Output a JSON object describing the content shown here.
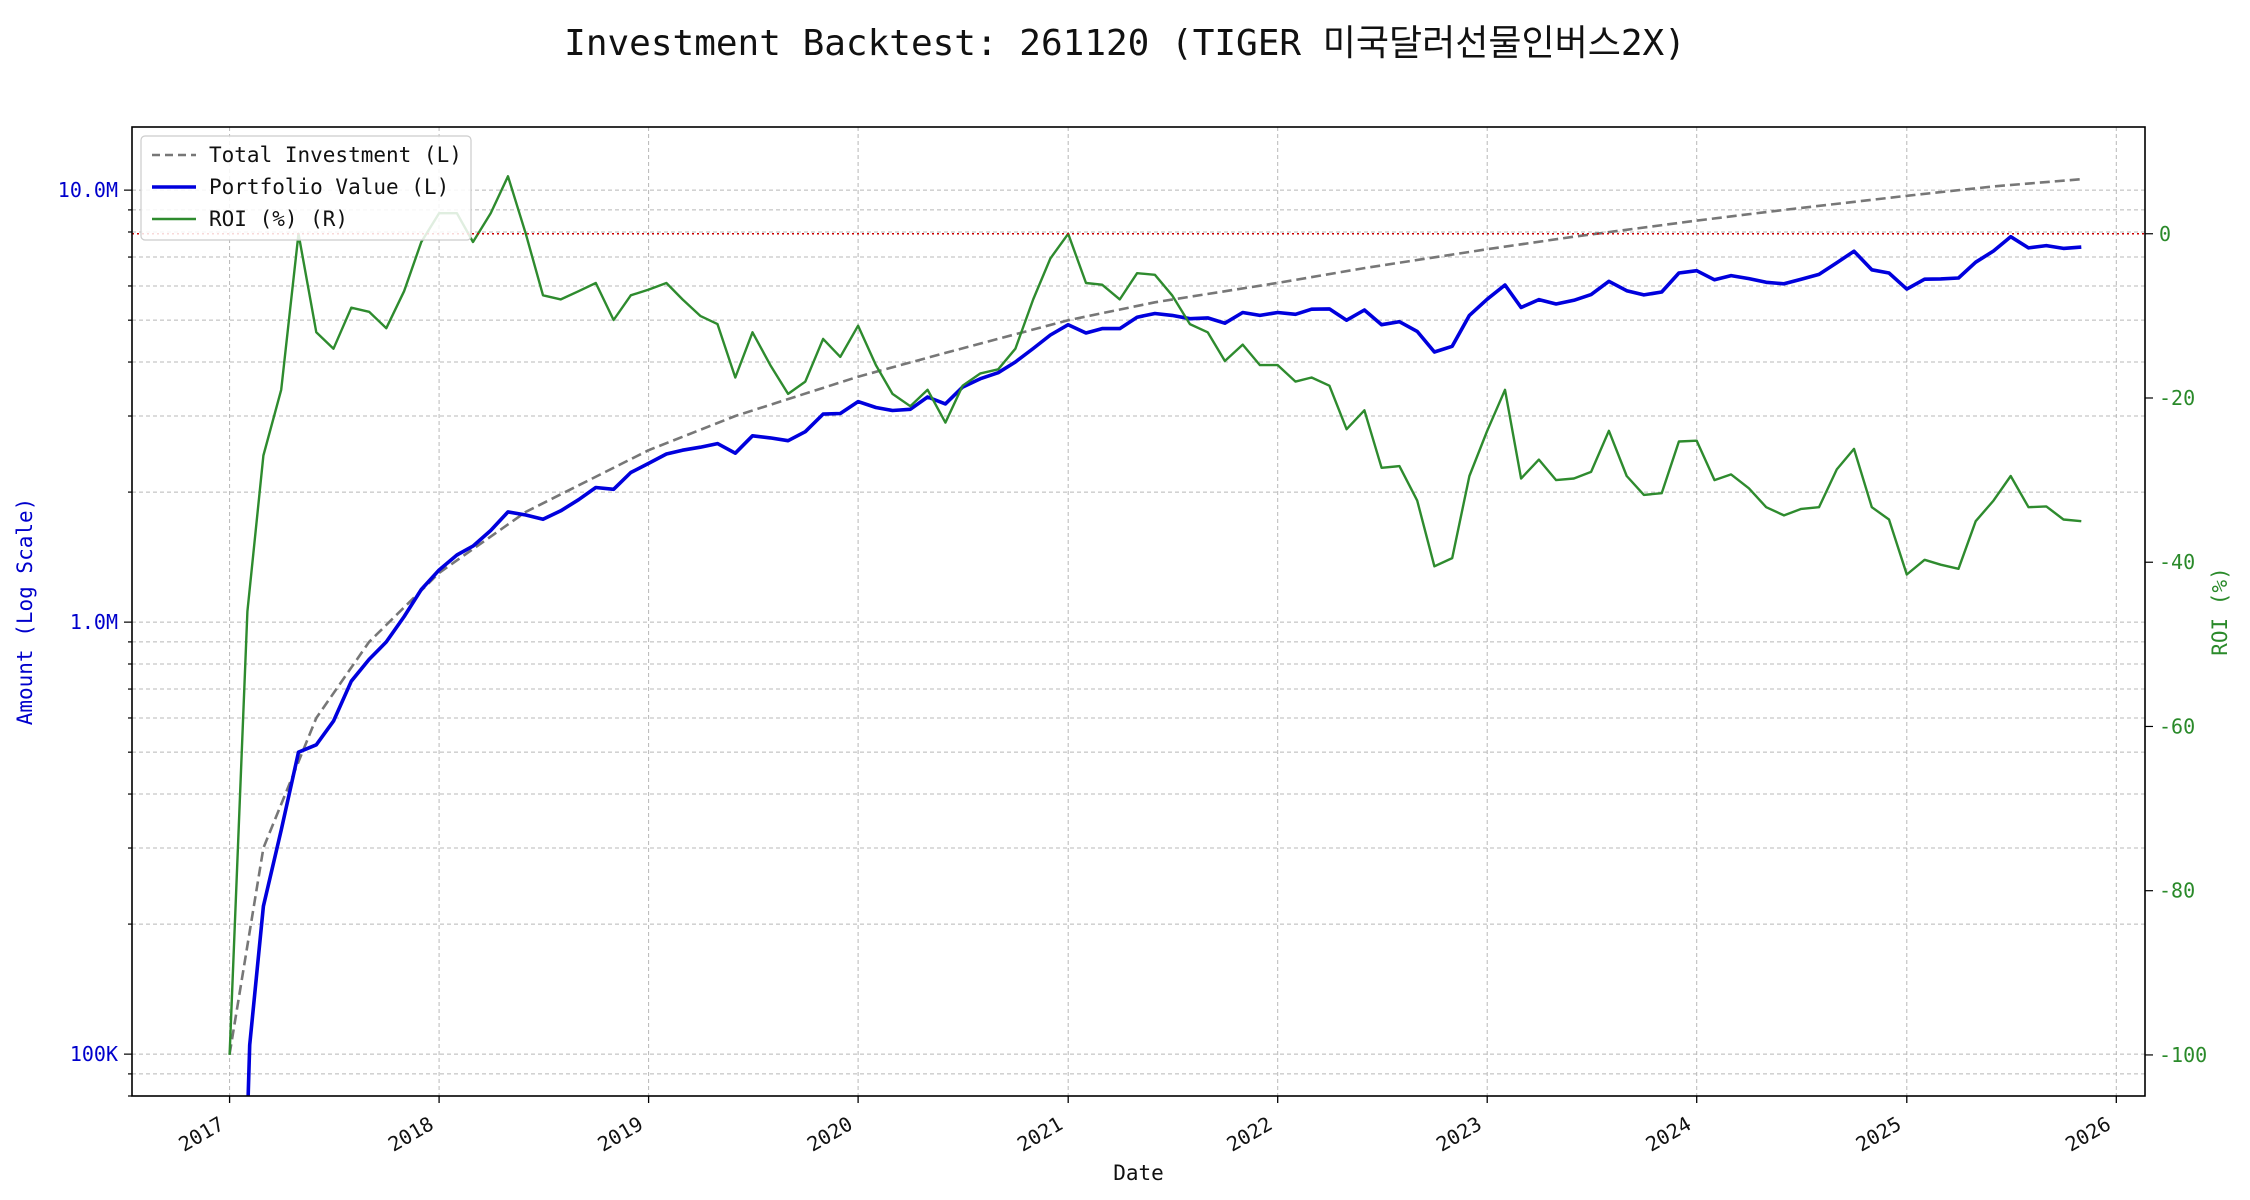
{
  "chart_data": {
    "type": "line",
    "title": "Investment Backtest: 261120 (TIGER 미국달러선물인버스2X)",
    "xlabel": "Date",
    "ylabel_left": "Amount (Log Scale)",
    "ylabel_right": "ROI (%)",
    "left_scale": "log",
    "left_ylim": [
      80000,
      14000000
    ],
    "right_ylim": [
      -105,
      13
    ],
    "xlim": [
      "2016-07-15",
      "2026-02-20"
    ],
    "x_ticks": [
      "2017",
      "2018",
      "2019",
      "2020",
      "2021",
      "2022",
      "2023",
      "2024",
      "2025",
      "2026"
    ],
    "left_ticks": [
      {
        "value": 100000,
        "label": "100K"
      },
      {
        "value": 1000000,
        "label": "1.0M"
      },
      {
        "value": 10000000,
        "label": "10.0M"
      }
    ],
    "right_ticks": [
      0,
      -20,
      -40,
      -60,
      -80,
      -100
    ],
    "reference_line": {
      "axis": "right",
      "value": 0,
      "color": "#cc0000",
      "style": "dotted"
    },
    "grid": true,
    "legend_position": "top-left",
    "legend": [
      "Total Investment (L)",
      "Portfolio Value (L)",
      "ROI (%) (R)"
    ],
    "series": [
      {
        "name": "Total Investment (L)",
        "axis": "left",
        "color": "#777777",
        "style": "dashed",
        "points": [
          [
            "2017-01-01",
            100000
          ],
          [
            "2017-03-01",
            300000
          ],
          [
            "2017-06-01",
            600000
          ],
          [
            "2017-09-01",
            900000
          ],
          [
            "2018-01-01",
            1300000
          ],
          [
            "2018-06-01",
            1800000
          ],
          [
            "2019-01-01",
            2500000
          ],
          [
            "2019-06-01",
            3000000
          ],
          [
            "2020-01-01",
            3700000
          ],
          [
            "2020-06-01",
            4200000
          ],
          [
            "2021-01-01",
            5000000
          ],
          [
            "2021-06-01",
            5500000
          ],
          [
            "2022-01-01",
            6100000
          ],
          [
            "2022-06-01",
            6600000
          ],
          [
            "2023-01-01",
            7300000
          ],
          [
            "2023-06-01",
            7800000
          ],
          [
            "2024-01-01",
            8500000
          ],
          [
            "2024-06-01",
            9000000
          ],
          [
            "2025-01-01",
            9700000
          ],
          [
            "2025-06-01",
            10200000
          ],
          [
            "2025-11-01",
            10600000
          ]
        ]
      },
      {
        "name": "Portfolio Value (L)",
        "axis": "left",
        "color": "#0000dd",
        "style": "solid",
        "points": [
          [
            "2017-02-01",
            70000
          ],
          [
            "2017-02-05",
            105000
          ],
          [
            "2017-03-01",
            220000
          ],
          [
            "2017-04-01",
            330000
          ],
          [
            "2017-05-01",
            500000
          ],
          [
            "2017-06-01",
            520000
          ],
          [
            "2017-07-01",
            590000
          ],
          [
            "2017-08-01",
            730000
          ],
          [
            "2017-09-01",
            820000
          ],
          [
            "2017-10-01",
            900000
          ],
          [
            "2017-11-01",
            1030000
          ],
          [
            "2017-12-01",
            1190000
          ],
          [
            "2018-01-01",
            1320000
          ],
          [
            "2018-02-01",
            1430000
          ],
          [
            "2018-03-01",
            1500000
          ],
          [
            "2018-04-01",
            1630000
          ],
          [
            "2018-05-01",
            1800000
          ],
          [
            "2018-06-01",
            1770000
          ],
          [
            "2018-07-01",
            1730000
          ],
          [
            "2018-08-01",
            1810000
          ],
          [
            "2018-09-01",
            1920000
          ],
          [
            "2018-10-01",
            2050000
          ],
          [
            "2018-11-01",
            2030000
          ],
          [
            "2018-12-01",
            2220000
          ],
          [
            "2019-01-01",
            2330000
          ],
          [
            "2019-02-01",
            2450000
          ],
          [
            "2019-03-01",
            2500000
          ],
          [
            "2019-04-01",
            2540000
          ],
          [
            "2019-05-01",
            2590000
          ],
          [
            "2019-06-01",
            2460000
          ],
          [
            "2019-07-01",
            2700000
          ],
          [
            "2019-08-01",
            2670000
          ],
          [
            "2019-09-01",
            2630000
          ],
          [
            "2019-10-01",
            2760000
          ],
          [
            "2019-11-01",
            3030000
          ],
          [
            "2019-12-01",
            3040000
          ],
          [
            "2020-01-01",
            3240000
          ],
          [
            "2020-02-01",
            3140000
          ],
          [
            "2020-03-01",
            3090000
          ],
          [
            "2020-04-01",
            3110000
          ],
          [
            "2020-05-01",
            3320000
          ],
          [
            "2020-06-01",
            3200000
          ],
          [
            "2020-07-01",
            3500000
          ],
          [
            "2020-08-01",
            3660000
          ],
          [
            "2020-09-01",
            3780000
          ],
          [
            "2020-10-01",
            4000000
          ],
          [
            "2020-11-01",
            4300000
          ],
          [
            "2020-12-01",
            4620000
          ],
          [
            "2021-01-01",
            4880000
          ],
          [
            "2021-02-01",
            4670000
          ],
          [
            "2021-03-01",
            4780000
          ],
          [
            "2021-04-01",
            4780000
          ],
          [
            "2021-05-01",
            5080000
          ],
          [
            "2021-06-01",
            5180000
          ],
          [
            "2021-07-01",
            5130000
          ],
          [
            "2021-08-01",
            5040000
          ],
          [
            "2021-09-01",
            5060000
          ],
          [
            "2021-10-01",
            4920000
          ],
          [
            "2021-11-01",
            5210000
          ],
          [
            "2021-12-01",
            5130000
          ],
          [
            "2022-01-01",
            5210000
          ],
          [
            "2022-02-01",
            5160000
          ],
          [
            "2022-03-01",
            5300000
          ],
          [
            "2022-04-01",
            5310000
          ],
          [
            "2022-05-01",
            5000000
          ],
          [
            "2022-06-01",
            5280000
          ],
          [
            "2022-07-01",
            4880000
          ],
          [
            "2022-08-01",
            4960000
          ],
          [
            "2022-09-01",
            4710000
          ],
          [
            "2022-10-01",
            4220000
          ],
          [
            "2022-11-01",
            4350000
          ],
          [
            "2022-12-01",
            5130000
          ],
          [
            "2023-01-01",
            5590000
          ],
          [
            "2023-02-01",
            6030000
          ],
          [
            "2023-03-01",
            5350000
          ],
          [
            "2023-04-01",
            5580000
          ],
          [
            "2023-05-01",
            5450000
          ],
          [
            "2023-06-01",
            5560000
          ],
          [
            "2023-07-01",
            5730000
          ],
          [
            "2023-08-01",
            6150000
          ],
          [
            "2023-09-01",
            5850000
          ],
          [
            "2023-10-01",
            5720000
          ],
          [
            "2023-11-01",
            5810000
          ],
          [
            "2023-12-01",
            6430000
          ],
          [
            "2024-01-01",
            6510000
          ],
          [
            "2024-02-01",
            6200000
          ],
          [
            "2024-03-01",
            6340000
          ],
          [
            "2024-04-01",
            6240000
          ],
          [
            "2024-05-01",
            6120000
          ],
          [
            "2024-06-01",
            6070000
          ],
          [
            "2024-07-01",
            6220000
          ],
          [
            "2024-08-01",
            6380000
          ],
          [
            "2024-09-01",
            6790000
          ],
          [
            "2024-10-01",
            7220000
          ],
          [
            "2024-11-01",
            6540000
          ],
          [
            "2024-12-01",
            6430000
          ],
          [
            "2025-01-01",
            5900000
          ],
          [
            "2025-02-01",
            6220000
          ],
          [
            "2025-03-01",
            6230000
          ],
          [
            "2025-04-01",
            6260000
          ],
          [
            "2025-05-01",
            6810000
          ],
          [
            "2025-06-01",
            7230000
          ],
          [
            "2025-07-01",
            7800000
          ],
          [
            "2025-08-01",
            7350000
          ],
          [
            "2025-09-01",
            7440000
          ],
          [
            "2025-10-01",
            7330000
          ],
          [
            "2025-11-01",
            7380000
          ]
        ]
      },
      {
        "name": "ROI (%) (R)",
        "axis": "right",
        "color": "#2e8b2e",
        "style": "solid",
        "points": [
          [
            "2017-01-01",
            -100
          ],
          [
            "2017-02-01",
            -46
          ],
          [
            "2017-03-01",
            -27
          ],
          [
            "2017-04-01",
            -19
          ],
          [
            "2017-05-01",
            0
          ],
          [
            "2017-06-01",
            -12
          ],
          [
            "2017-07-01",
            -14
          ],
          [
            "2017-08-01",
            -9
          ],
          [
            "2017-09-01",
            -9.5
          ],
          [
            "2017-10-01",
            -11.5
          ],
          [
            "2017-11-01",
            -7
          ],
          [
            "2017-12-01",
            -1
          ],
          [
            "2018-01-01",
            2.5
          ],
          [
            "2018-02-01",
            2.5
          ],
          [
            "2018-03-01",
            -1
          ],
          [
            "2018-04-01",
            2.5
          ],
          [
            "2018-05-01",
            7
          ],
          [
            "2018-06-01",
            0
          ],
          [
            "2018-07-01",
            -7.5
          ],
          [
            "2018-08-01",
            -8
          ],
          [
            "2018-09-01",
            -7
          ],
          [
            "2018-10-01",
            -6
          ],
          [
            "2018-11-01",
            -10.5
          ],
          [
            "2018-12-01",
            -7.5
          ],
          [
            "2019-01-01",
            -6.8
          ],
          [
            "2019-02-01",
            -6
          ],
          [
            "2019-03-01",
            -8
          ],
          [
            "2019-04-01",
            -10
          ],
          [
            "2019-05-01",
            -11
          ],
          [
            "2019-06-01",
            -17.5
          ],
          [
            "2019-07-01",
            -12
          ],
          [
            "2019-08-01",
            -16
          ],
          [
            "2019-09-01",
            -19.5
          ],
          [
            "2019-10-01",
            -18
          ],
          [
            "2019-11-01",
            -12.8
          ],
          [
            "2019-12-01",
            -15
          ],
          [
            "2020-01-01",
            -11.2
          ],
          [
            "2020-02-01",
            -16
          ],
          [
            "2020-03-01",
            -19.5
          ],
          [
            "2020-04-01",
            -21
          ],
          [
            "2020-05-01",
            -19
          ],
          [
            "2020-06-01",
            -23
          ],
          [
            "2020-07-01",
            -18.5
          ],
          [
            "2020-08-01",
            -17
          ],
          [
            "2020-09-01",
            -16.5
          ],
          [
            "2020-10-01",
            -14
          ],
          [
            "2020-11-01",
            -8
          ],
          [
            "2020-12-01",
            -3
          ],
          [
            "2021-01-01",
            0
          ],
          [
            "2021-02-01",
            -6
          ],
          [
            "2021-03-01",
            -6.2
          ],
          [
            "2021-04-01",
            -8
          ],
          [
            "2021-05-01",
            -4.8
          ],
          [
            "2021-06-01",
            -5
          ],
          [
            "2021-07-01",
            -7.5
          ],
          [
            "2021-08-01",
            -11
          ],
          [
            "2021-09-01",
            -12
          ],
          [
            "2021-10-01",
            -15.5
          ],
          [
            "2021-11-01",
            -13.5
          ],
          [
            "2021-12-01",
            -16
          ],
          [
            "2022-01-01",
            -16
          ],
          [
            "2022-02-01",
            -18
          ],
          [
            "2022-03-01",
            -17.5
          ],
          [
            "2022-04-01",
            -18.5
          ],
          [
            "2022-05-01",
            -23.8
          ],
          [
            "2022-06-01",
            -21.5
          ],
          [
            "2022-07-01",
            -28.5
          ],
          [
            "2022-08-01",
            -28.3
          ],
          [
            "2022-09-01",
            -32.5
          ],
          [
            "2022-10-01",
            -40.5
          ],
          [
            "2022-11-01",
            -39.5
          ],
          [
            "2022-12-01",
            -29.5
          ],
          [
            "2023-01-01",
            -24
          ],
          [
            "2023-02-01",
            -19
          ],
          [
            "2023-03-01",
            -29.8
          ],
          [
            "2023-04-01",
            -27.5
          ],
          [
            "2023-05-01",
            -30
          ],
          [
            "2023-06-01",
            -29.8
          ],
          [
            "2023-07-01",
            -29
          ],
          [
            "2023-08-01",
            -24
          ],
          [
            "2023-09-01",
            -29.5
          ],
          [
            "2023-10-01",
            -31.8
          ],
          [
            "2023-11-01",
            -31.6
          ],
          [
            "2023-12-01",
            -25.3
          ],
          [
            "2024-01-01",
            -25.2
          ],
          [
            "2024-02-01",
            -30
          ],
          [
            "2024-03-01",
            -29.3
          ],
          [
            "2024-04-01",
            -31
          ],
          [
            "2024-05-01",
            -33.3
          ],
          [
            "2024-06-01",
            -34.3
          ],
          [
            "2024-07-01",
            -33.5
          ],
          [
            "2024-08-01",
            -33.3
          ],
          [
            "2024-09-01",
            -28.7
          ],
          [
            "2024-10-01",
            -26.2
          ],
          [
            "2024-11-01",
            -33.3
          ],
          [
            "2024-12-01",
            -34.8
          ],
          [
            "2025-01-01",
            -41.5
          ],
          [
            "2025-02-01",
            -39.7
          ],
          [
            "2025-03-01",
            -40.3
          ],
          [
            "2025-04-01",
            -40.8
          ],
          [
            "2025-05-01",
            -35
          ],
          [
            "2025-06-01",
            -32.5
          ],
          [
            "2025-07-01",
            -29.5
          ],
          [
            "2025-08-01",
            -33.3
          ],
          [
            "2025-09-01",
            -33.2
          ],
          [
            "2025-10-01",
            -34.8
          ],
          [
            "2025-11-01",
            -35
          ]
        ]
      }
    ]
  }
}
